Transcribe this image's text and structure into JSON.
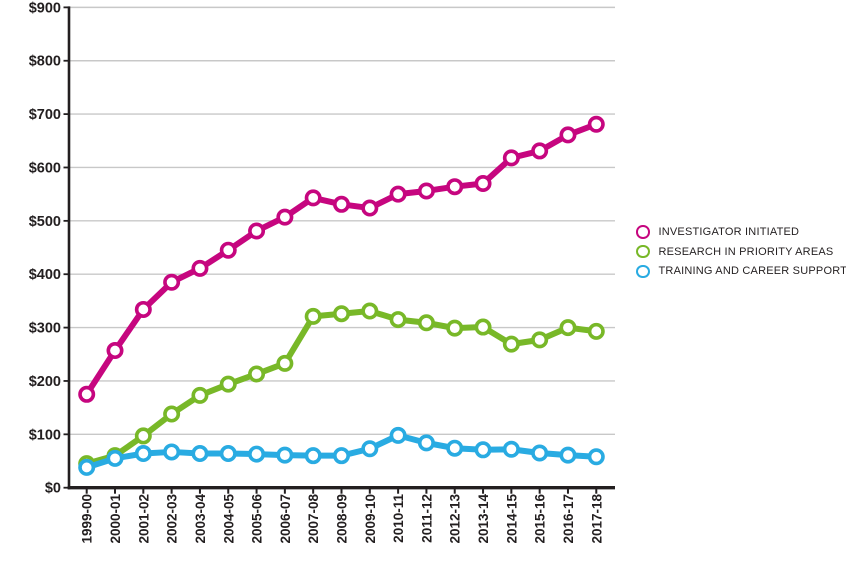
{
  "chart_data": {
    "type": "line",
    "title": "",
    "xlabel": "",
    "ylabel": "",
    "ytick_prefix": "$",
    "ylim": [
      0,
      900
    ],
    "ytick_interval": 100,
    "grid": true,
    "legend_position": "right",
    "x": [
      "1999-00",
      "2000-01",
      "2001-02",
      "2002-03",
      "2003-04",
      "2004-05",
      "2005-06",
      "2006-07",
      "2007-08",
      "2008-09",
      "2009-10",
      "2010-11",
      "2011-12",
      "2012-13",
      "2013-14",
      "2014-15",
      "2015-16",
      "2016-17",
      "2017-18"
    ],
    "series": [
      {
        "name": "INVESTIGATOR INITIATED",
        "color": "#c6067f",
        "values": [
          175,
          257,
          334,
          385,
          411,
          445,
          481,
          507,
          543,
          531,
          524,
          550,
          556,
          564,
          570,
          618,
          631,
          661,
          681
        ]
      },
      {
        "name": "RESEARCH IN PRIORITY AREAS",
        "color": "#78b828",
        "values": [
          45,
          60,
          97,
          138,
          173,
          194,
          213,
          233,
          321,
          326,
          331,
          315,
          309,
          299,
          301,
          269,
          277,
          300,
          293
        ]
      },
      {
        "name": "TRAINING AND CAREER SUPPORT",
        "color": "#29abe2",
        "values": [
          38,
          55,
          64,
          67,
          64,
          64,
          63,
          61,
          60,
          60,
          73,
          98,
          84,
          74,
          71,
          72,
          65,
          61,
          58
        ]
      }
    ],
    "colors": {
      "axis": "#231f20",
      "gridline": "#c8c8c8",
      "text": "#231f20",
      "point_fill": "#ffffff"
    }
  }
}
